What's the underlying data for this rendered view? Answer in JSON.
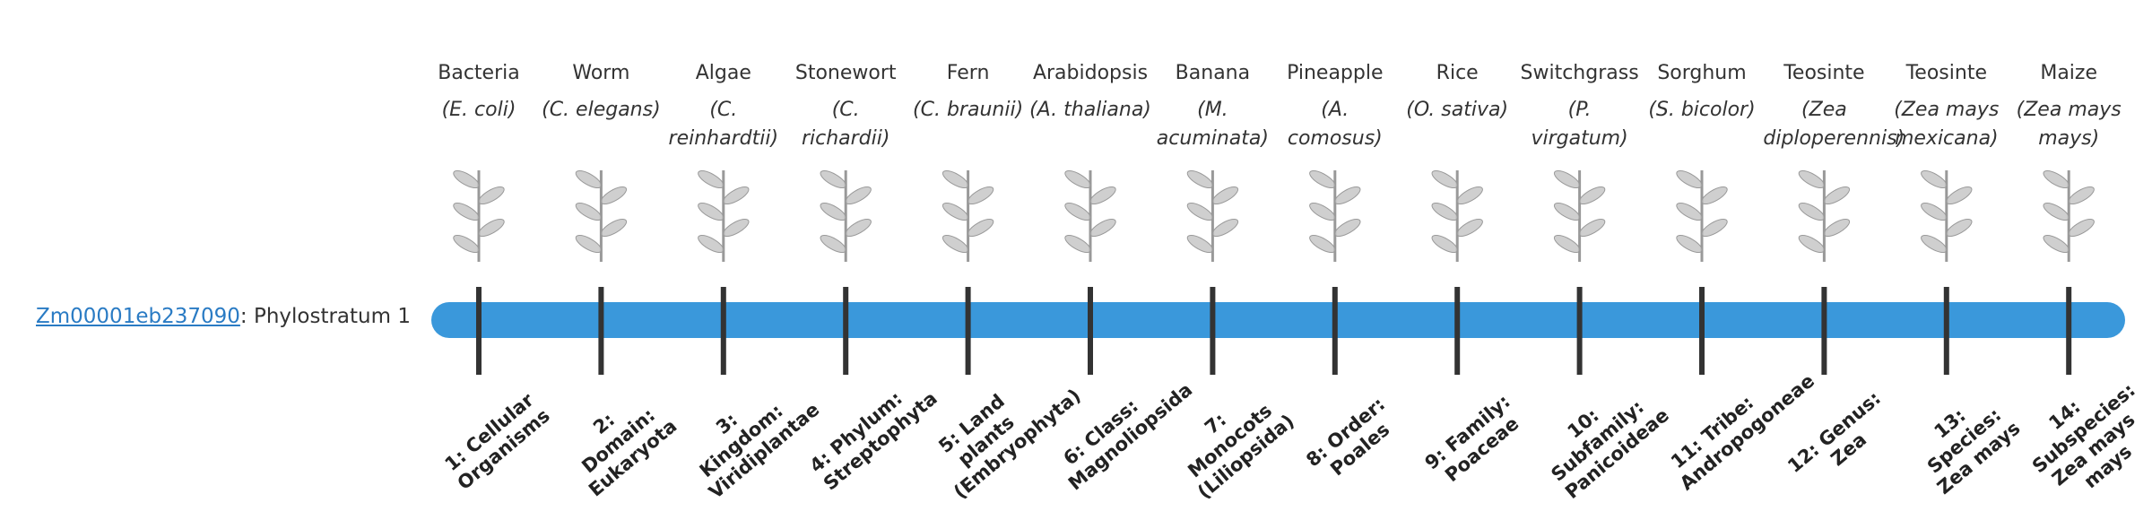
{
  "gene": {
    "id": "Zm00001eb237090",
    "suffix": ": Phylostratum 1"
  },
  "organisms": [
    {
      "name": "Bacteria",
      "species": "(E. coli)",
      "stratum": "1: Cellular Organisms"
    },
    {
      "name": "Worm",
      "species": "(C. elegans)",
      "stratum": "2: Domain: Eukaryota"
    },
    {
      "name": "Algae",
      "species": "(C. reinhardtii)",
      "stratum": "3: Kingdom: Viridiplantae"
    },
    {
      "name": "Stonewort",
      "species": "(C. richardii)",
      "stratum": "4: Phylum: Streptophyta"
    },
    {
      "name": "Fern",
      "species": "(C. braunii)",
      "stratum": "5: Land plants (Embryophyta)"
    },
    {
      "name": "Arabidopsis",
      "species": "(A. thaliana)",
      "stratum": "6: Class: Magnoliopsida"
    },
    {
      "name": "Banana",
      "species": "(M. acuminata)",
      "stratum": "7: Monocots (Liliopsida)"
    },
    {
      "name": "Pineapple",
      "species": "(A. comosus)",
      "stratum": "8: Order: Poales"
    },
    {
      "name": "Rice",
      "species": "(O. sativa)",
      "stratum": "9: Family: Poaceae"
    },
    {
      "name": "Switchgrass",
      "species": "(P. virgatum)",
      "stratum": "10: Subfamily: Panicoideae"
    },
    {
      "name": "Sorghum",
      "species": "(S. bicolor)",
      "stratum": "11: Tribe: Andropogoneae"
    },
    {
      "name": "Teosinte",
      "species": "(Zea diploperennis)",
      "stratum": "12: Genus: Zea"
    },
    {
      "name": "Teosinte",
      "species": "(Zea mays mexicana)",
      "stratum": "13: Species: Zea mays"
    },
    {
      "name": "Maize",
      "species": "(Zea mays mays)",
      "stratum": "14: Subspecies: Zea mays mays"
    }
  ]
}
